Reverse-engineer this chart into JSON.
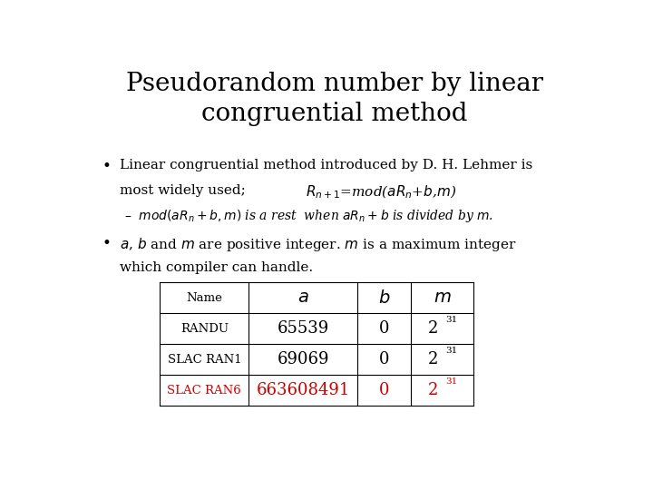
{
  "title": "Pseudorandom number by linear\ncongruential method",
  "title_fontsize": 20,
  "background_color": "#ffffff",
  "text_color": "#000000",
  "red_color": "#cc0000",
  "table_headers": [
    "Name",
    "a",
    "b",
    "m"
  ],
  "table_rows": [
    [
      "RANDU",
      "65539",
      "0",
      "2"
    ],
    [
      "SLAC RAN1",
      "69069",
      "0",
      "2"
    ],
    [
      "SLAC RAN6",
      "663608491",
      "0",
      "2"
    ]
  ],
  "table_row_colors": [
    "#000000",
    "#000000",
    "#cc0000"
  ],
  "superscript": "31",
  "body_fontsize": 11,
  "small_fontsize": 10,
  "table_name_fontsize": 9.5,
  "table_data_fontsize": 13,
  "table_header_italic_fontsize": 14
}
